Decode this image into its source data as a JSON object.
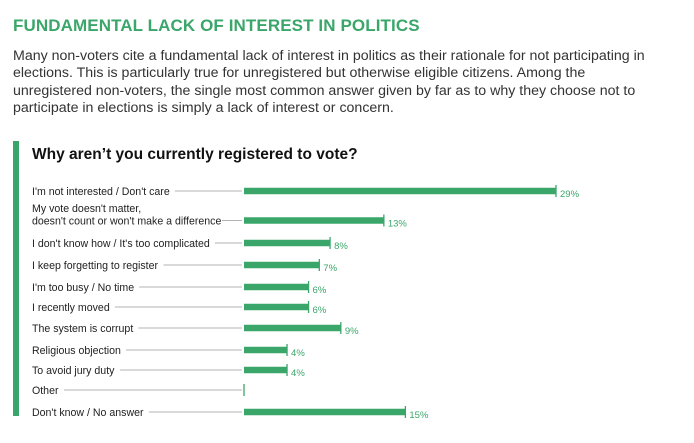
{
  "header": {
    "title": "FUNDAMENTAL LACK OF INTEREST IN POLITICS",
    "intro": "Many non-voters cite a fundamental lack of interest in politics as their rationale for not participating in elections. This is particularly true for unregistered but otherwise eligible citizens. Among the unregistered non-voters, the single most common answer given by far as to why they choose not to participate in elections is simply a lack of interest or concern."
  },
  "colors": {
    "accent": "#3aa66a",
    "leader": "#9a9a9a"
  },
  "chart_data": {
    "type": "bar",
    "orientation": "horizontal",
    "title": "Why aren’t you currently registered to vote?",
    "categories": [
      [
        "I'm not interested / Don't care"
      ],
      [
        "My vote doesn't matter,",
        "doesn't count or won't make a difference"
      ],
      [
        "I don't know how / It's too complicated"
      ],
      [
        "I keep forgetting to register"
      ],
      [
        "I'm too busy / No time"
      ],
      [
        "I recently moved"
      ],
      [
        "The system is corrupt"
      ],
      [
        "Religious objection"
      ],
      [
        "To avoid jury duty"
      ],
      [
        "Other"
      ],
      [
        "Don't know / No answer"
      ]
    ],
    "values": [
      29,
      13,
      8,
      7,
      6,
      6,
      9,
      4,
      4,
      0,
      15
    ],
    "value_labels": [
      "29%",
      "13%",
      "8%",
      "7%",
      "6%",
      "6%",
      "9%",
      "4%",
      "4%",
      "",
      "15%"
    ],
    "unit": "%",
    "xlim": [
      0,
      29
    ],
    "grid": false,
    "legend": "none"
  }
}
